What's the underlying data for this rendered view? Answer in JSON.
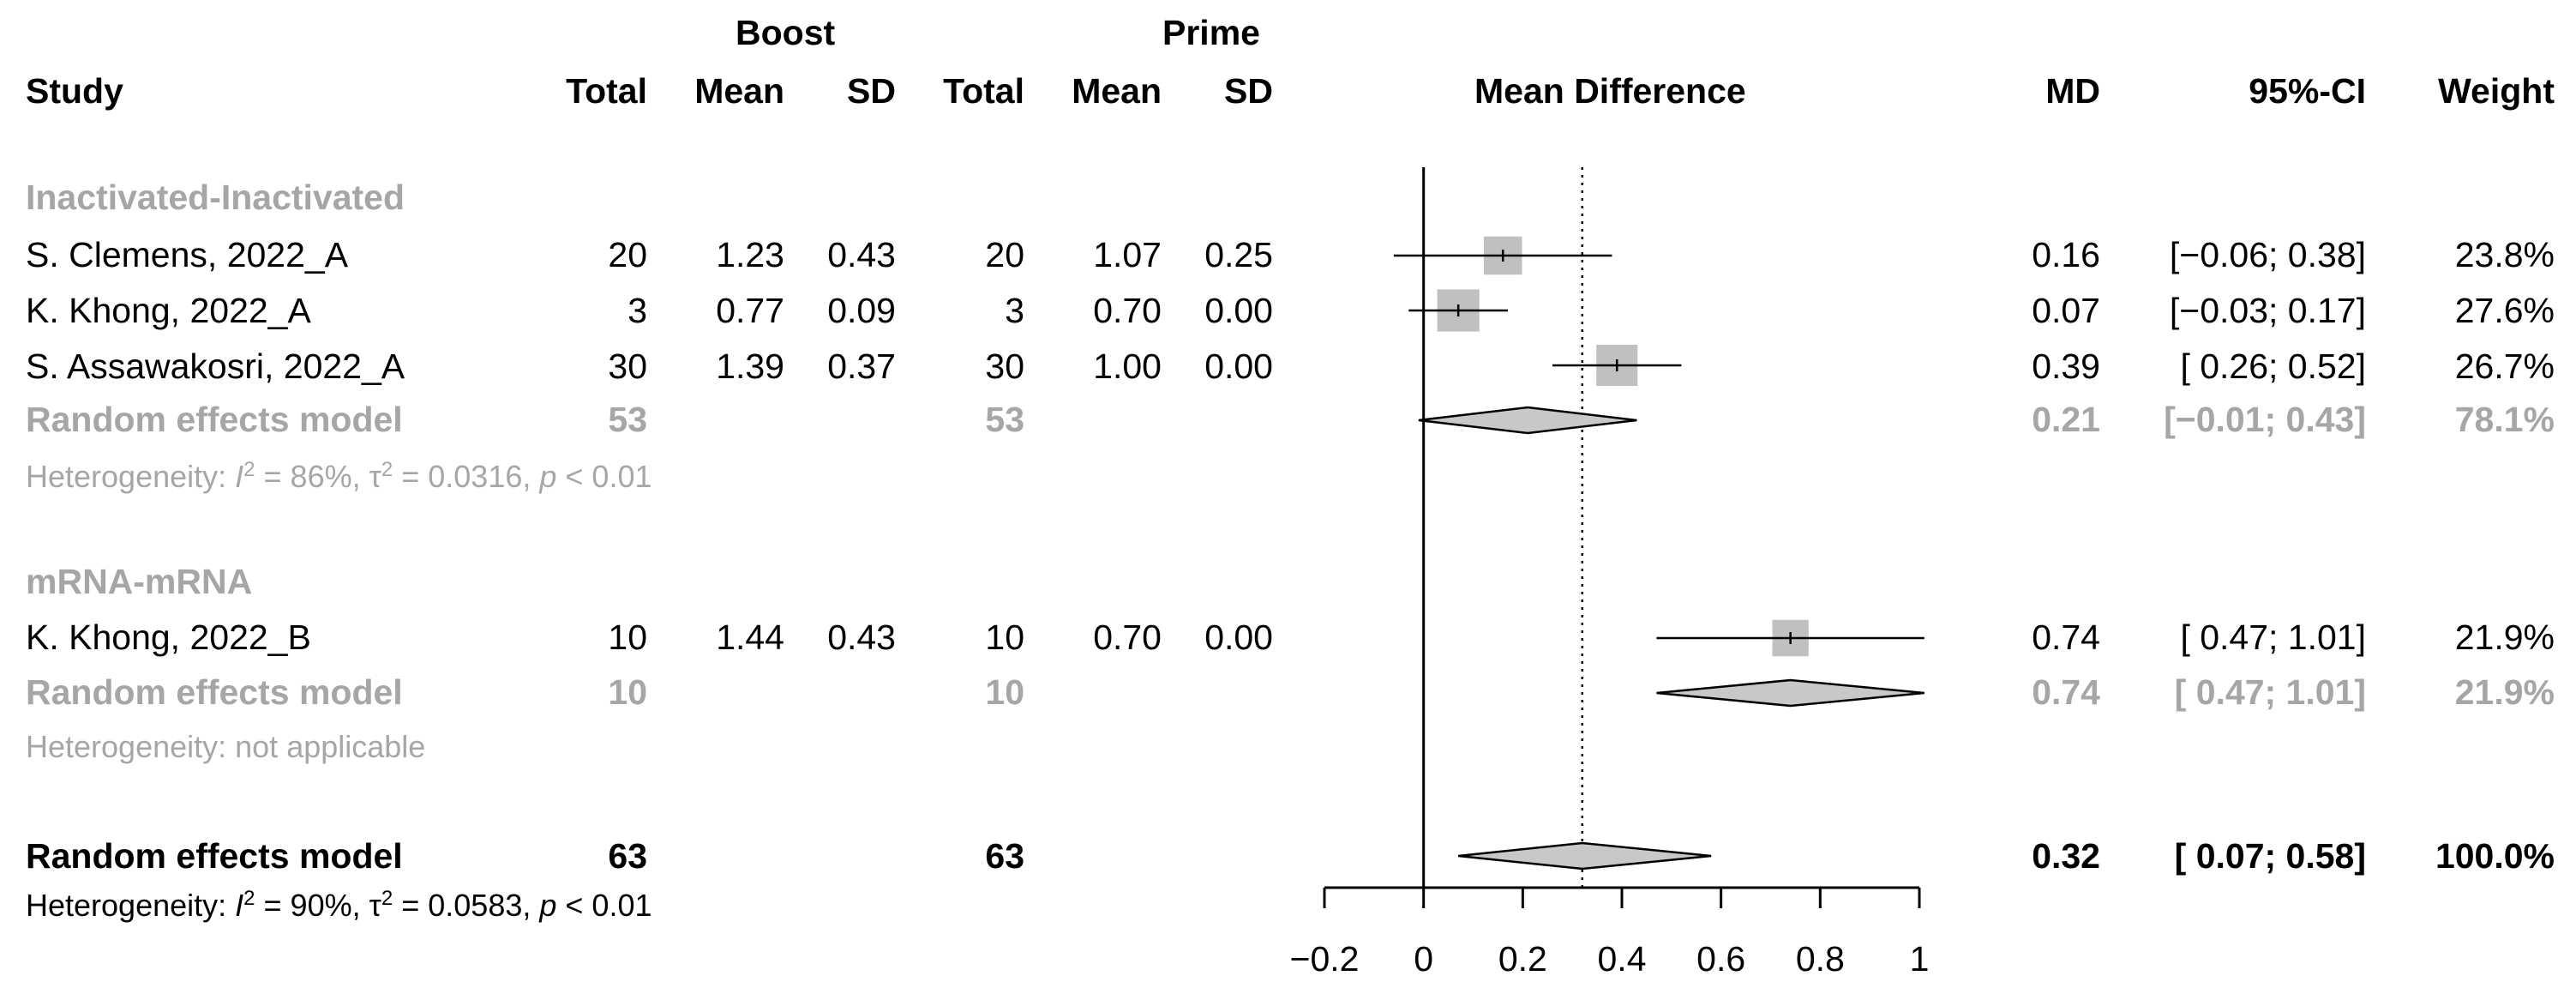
{
  "header": {
    "boost": "Boost",
    "prime": "Prime",
    "study": "Study",
    "boost_total": "Total",
    "boost_mean": "Mean",
    "boost_sd": "SD",
    "prime_total": "Total",
    "prime_mean": "Mean",
    "prime_sd": "SD",
    "effect": "Mean Difference",
    "md": "MD",
    "ci": "95%-CI",
    "weight": "Weight"
  },
  "subgroups": [
    {
      "name": "Inactivated-Inactivated",
      "studies": [
        {
          "study": "S. Clemens, 2022_A",
          "bt": "20",
          "bm": "1.23",
          "bsd": "0.43",
          "pt": "20",
          "pm": "1.07",
          "psd": "0.25",
          "md_text": "0.16",
          "ci_text": "[−0.06; 0.38]",
          "w": "23.8%"
        },
        {
          "study": "K. Khong, 2022_A",
          "bt": "3",
          "bm": "0.77",
          "bsd": "0.09",
          "pt": "3",
          "pm": "0.70",
          "psd": "0.00",
          "md_text": "0.07",
          "ci_text": "[−0.03; 0.17]",
          "w": "27.6%"
        },
        {
          "study": "S. Assawakosri, 2022_A",
          "bt": "30",
          "bm": "1.39",
          "bsd": "0.37",
          "pt": "30",
          "pm": "1.00",
          "psd": "0.00",
          "md_text": "0.39",
          "ci_text": "[ 0.26; 0.52]",
          "w": "26.7%"
        }
      ],
      "model": {
        "label": "Random effects model",
        "bt": "53",
        "pt": "53",
        "md_text": "0.21",
        "ci_text": "[−0.01; 0.43]",
        "w": "78.1%"
      },
      "heterogeneity": {
        "prefix": "Heterogeneity: ",
        "i2_sym": "I",
        "i2_exp": "2",
        "i2_val": " = 86%, ",
        "tau_sym": "τ",
        "tau_exp": "2",
        "tau_val": " = 0.0316, ",
        "p_sym": "p",
        "p_val": " < 0.01"
      }
    },
    {
      "name": "mRNA-mRNA",
      "studies": [
        {
          "study": "K. Khong, 2022_B",
          "bt": "10",
          "bm": "1.44",
          "bsd": "0.43",
          "pt": "10",
          "pm": "0.70",
          "psd": "0.00",
          "md_text": "0.74",
          "ci_text": "[ 0.47; 1.01]",
          "w": "21.9%"
        }
      ],
      "model": {
        "label": "Random effects model",
        "bt": "10",
        "pt": "10",
        "md_text": "0.74",
        "ci_text": "[ 0.47; 1.01]",
        "w": "21.9%"
      },
      "heterogeneity": {
        "text": "Heterogeneity: not applicable"
      }
    }
  ],
  "overall": {
    "label": "Random effects model",
    "bt": "63",
    "pt": "63",
    "md_text": "0.32",
    "ci_text": "[ 0.07; 0.58]",
    "w": "100.0%",
    "heterogeneity": {
      "prefix": "Heterogeneity: ",
      "i2_sym": "I",
      "i2_exp": "2",
      "i2_val": " = 90%, ",
      "tau_sym": "τ",
      "tau_exp": "2",
      "tau_val": " = 0.0583, ",
      "p_sym": "p",
      "p_val": " < 0.01"
    }
  },
  "colors": {
    "text": "#000000",
    "subgroup_text": "#a6a6a6",
    "square": "#c0c0c0",
    "diamond": "#c8c8c8",
    "line": "#000000"
  },
  "chart_data": {
    "type": "forest",
    "xlabel": "Mean Difference",
    "xlim": [
      -0.2,
      1
    ],
    "xticks": [
      -0.2,
      0,
      0.2,
      0.4,
      0.6,
      0.8,
      1
    ],
    "xtick_labels": [
      "−0.2",
      "0",
      "0.2",
      "0.4",
      "0.6",
      "0.8",
      "1"
    ],
    "reference_line": 0,
    "overall_line": 0.32,
    "points": [
      {
        "row": "study",
        "name": "S. Clemens, 2022_A",
        "md": 0.16,
        "lo": -0.06,
        "hi": 0.38,
        "weight": 23.8
      },
      {
        "row": "study",
        "name": "K. Khong, 2022_A",
        "md": 0.07,
        "lo": -0.03,
        "hi": 0.17,
        "weight": 27.6
      },
      {
        "row": "study",
        "name": "S. Assawakosri, 2022_A",
        "md": 0.39,
        "lo": 0.26,
        "hi": 0.52,
        "weight": 26.7
      },
      {
        "row": "diamond",
        "name": "Inactivated-Inactivated random effects",
        "md": 0.21,
        "lo": -0.01,
        "hi": 0.43
      },
      {
        "row": "study",
        "name": "K. Khong, 2022_B",
        "md": 0.74,
        "lo": 0.47,
        "hi": 1.01,
        "weight": 21.9
      },
      {
        "row": "diamond",
        "name": "mRNA-mRNA random effects",
        "md": 0.74,
        "lo": 0.47,
        "hi": 1.01
      },
      {
        "row": "diamond",
        "name": "Overall random effects",
        "md": 0.32,
        "lo": 0.07,
        "hi": 0.58
      }
    ]
  }
}
